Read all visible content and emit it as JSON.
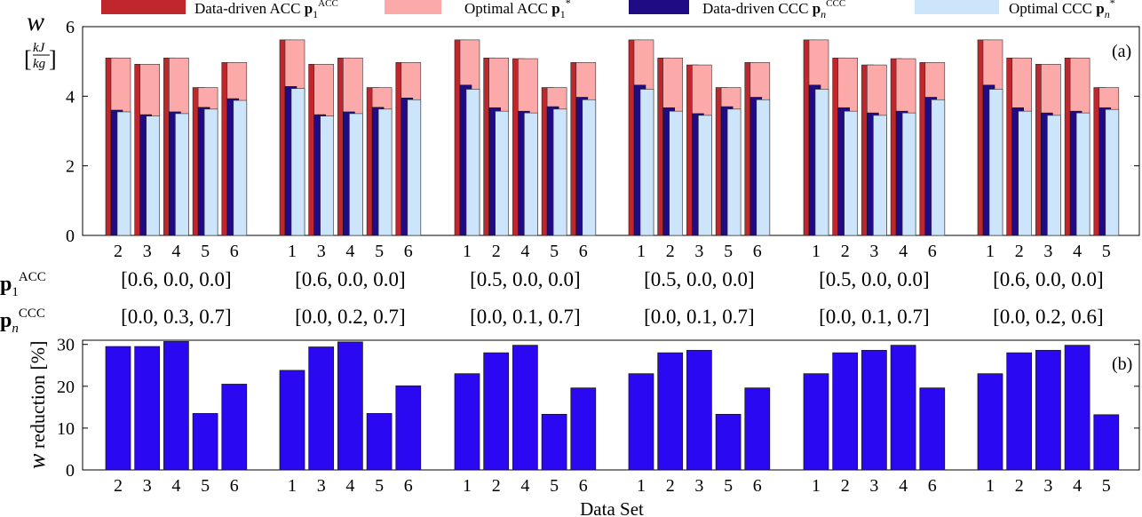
{
  "colors": {
    "dd_acc": "#c0272d",
    "opt_acc": "#fca9a9",
    "dd_ccc": "#1f0c85",
    "opt_ccc": "#cce5fb",
    "reduction": "#2a08f2"
  },
  "legend": {
    "dd_acc": "Data-driven ACC",
    "opt_acc": "Optimal ACC",
    "dd_ccc": "Data-driven CCC",
    "opt_ccc": "Optimal CCC"
  },
  "row_labels": {
    "acc": "ACC",
    "ccc": "CCC"
  },
  "params": {
    "acc": [
      "[0.6, 0.0, 0.0]",
      "[0.6, 0.0, 0.0]",
      "[0.5, 0.0, 0.0]",
      "[0.5, 0.0, 0.0]",
      "[0.5, 0.0, 0.0]",
      "[0.6, 0.0, 0.0]"
    ],
    "ccc": [
      "[0.0, 0.3, 0.7]",
      "[0.0, 0.2, 0.7]",
      "[0.0, 0.1, 0.7]",
      "[0.0, 0.1, 0.7]",
      "[0.0, 0.1, 0.7]",
      "[0.0, 0.2, 0.6]"
    ]
  },
  "chart_data": [
    {
      "type": "bar",
      "panel": "(a)",
      "ylabel": "w",
      "yunit_num": "kJ",
      "yunit_den": "kg",
      "ylim": [
        0,
        6
      ],
      "yticks": [
        0,
        2,
        4,
        6
      ],
      "groups": [
        {
          "categories": [
            "2",
            "3",
            "4",
            "5",
            "6"
          ],
          "dd_acc": [
            5.1,
            4.92,
            5.1,
            4.25,
            4.97
          ],
          "opt_acc": [
            5.1,
            4.92,
            5.1,
            4.25,
            4.97
          ],
          "dd_ccc": [
            3.6,
            3.47,
            3.55,
            3.68,
            3.93
          ],
          "opt_ccc": [
            3.55,
            3.43,
            3.5,
            3.63,
            3.88
          ]
        },
        {
          "categories": [
            "1",
            "3",
            "4",
            "5",
            "6"
          ],
          "dd_acc": [
            5.62,
            4.92,
            5.1,
            4.25,
            4.97
          ],
          "opt_acc": [
            5.62,
            4.92,
            5.1,
            4.25,
            4.97
          ],
          "dd_ccc": [
            4.28,
            3.47,
            3.55,
            3.68,
            3.95
          ],
          "opt_ccc": [
            4.22,
            3.43,
            3.5,
            3.63,
            3.9
          ]
        },
        {
          "categories": [
            "1",
            "2",
            "4",
            "5",
            "6"
          ],
          "dd_acc": [
            5.62,
            5.1,
            5.08,
            4.25,
            4.97
          ],
          "opt_acc": [
            5.62,
            5.1,
            5.08,
            4.25,
            4.97
          ],
          "dd_ccc": [
            4.32,
            3.67,
            3.57,
            3.7,
            3.97
          ],
          "opt_ccc": [
            4.2,
            3.57,
            3.52,
            3.63,
            3.9
          ]
        },
        {
          "categories": [
            "1",
            "2",
            "3",
            "5",
            "6"
          ],
          "dd_acc": [
            5.62,
            5.1,
            4.9,
            4.25,
            4.97
          ],
          "opt_acc": [
            5.62,
            5.1,
            4.9,
            4.25,
            4.97
          ],
          "dd_ccc": [
            4.32,
            3.67,
            3.5,
            3.7,
            3.97
          ],
          "opt_ccc": [
            4.2,
            3.57,
            3.45,
            3.63,
            3.9
          ]
        },
        {
          "categories": [
            "1",
            "2",
            "3",
            "4",
            "6"
          ],
          "dd_acc": [
            5.62,
            5.1,
            4.9,
            5.08,
            4.97
          ],
          "opt_acc": [
            5.62,
            5.1,
            4.9,
            5.08,
            4.97
          ],
          "dd_ccc": [
            4.32,
            3.67,
            3.52,
            3.57,
            3.97
          ],
          "opt_ccc": [
            4.2,
            3.57,
            3.45,
            3.52,
            3.9
          ]
        },
        {
          "categories": [
            "1",
            "2",
            "3",
            "4",
            "5"
          ],
          "dd_acc": [
            5.62,
            5.1,
            4.92,
            5.1,
            4.25
          ],
          "opt_acc": [
            5.62,
            5.1,
            4.92,
            5.1,
            4.25
          ],
          "dd_ccc": [
            4.32,
            3.67,
            3.52,
            3.57,
            3.67
          ],
          "opt_ccc": [
            4.2,
            3.57,
            3.45,
            3.52,
            3.62
          ]
        }
      ]
    },
    {
      "type": "bar",
      "panel": "(b)",
      "ylabel": "w",
      "ylabel_rest": "reduction [%]",
      "xlabel": "Data Set",
      "ylim": [
        0,
        31
      ],
      "yticks": [
        0,
        10,
        20,
        30
      ],
      "groups": [
        {
          "categories": [
            "2",
            "3",
            "4",
            "5",
            "6"
          ],
          "values": [
            29.5,
            29.5,
            30.7,
            13.5,
            20.5
          ]
        },
        {
          "categories": [
            "1",
            "3",
            "4",
            "5",
            "6"
          ],
          "values": [
            23.8,
            29.4,
            30.6,
            13.5,
            20.1
          ]
        },
        {
          "categories": [
            "1",
            "2",
            "4",
            "5",
            "6"
          ],
          "values": [
            23.0,
            28.0,
            29.8,
            13.3,
            19.6
          ]
        },
        {
          "categories": [
            "1",
            "2",
            "3",
            "5",
            "6"
          ],
          "values": [
            23.0,
            28.0,
            28.6,
            13.3,
            19.6
          ]
        },
        {
          "categories": [
            "1",
            "2",
            "3",
            "4",
            "6"
          ],
          "values": [
            23.0,
            28.0,
            28.6,
            29.8,
            19.6
          ]
        },
        {
          "categories": [
            "1",
            "2",
            "3",
            "4",
            "5"
          ],
          "values": [
            23.0,
            28.0,
            28.6,
            29.8,
            13.2
          ]
        }
      ]
    }
  ]
}
